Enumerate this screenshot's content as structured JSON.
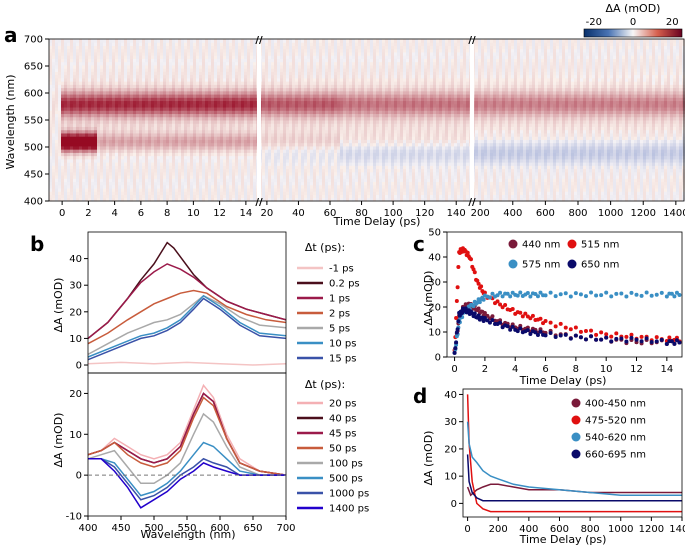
{
  "panel_labels": {
    "a": "a",
    "b": "b",
    "c": "c",
    "d": "d"
  },
  "chart_data": [
    {
      "id": "a",
      "type": "heatmap",
      "title": "",
      "xlabel": "Time Delay (ps)",
      "ylabel": "Wavelength (nm)",
      "ylim": [
        400,
        700
      ],
      "yticks": [
        "400",
        "450",
        "500",
        "550",
        "600",
        "650",
        "700"
      ],
      "xsegments": [
        {
          "range": [
            -1,
            15
          ],
          "ticks": [
            "0",
            "2",
            "4",
            "6",
            "8",
            "10",
            "12",
            "14"
          ]
        },
        {
          "range": [
            15,
            150
          ],
          "ticks": [
            "20",
            "40",
            "60",
            "80",
            "100",
            "120",
            "140"
          ]
        },
        {
          "range": [
            150,
            1450
          ],
          "ticks": [
            "200",
            "400",
            "600",
            "800",
            "1000",
            "1200",
            "1400"
          ]
        }
      ],
      "bands": [
        {
          "name": "positive",
          "center_nm": 580,
          "value": 20
        },
        {
          "name": "early",
          "center_nm": 510,
          "value": 30
        },
        {
          "name": "negative",
          "center_nm": 490,
          "value": -10
        }
      ],
      "colorbar": {
        "label": "ΔA (mOD)",
        "ticks": [
          "-20",
          "0",
          "20"
        ],
        "range": [
          -25,
          25
        ],
        "negative_color": "#08306b",
        "positive_color": "#67001f"
      }
    },
    {
      "id": "b-top",
      "type": "line",
      "ylabel": "ΔA (mOD)",
      "xlim": [
        400,
        700
      ],
      "ylim": [
        -3,
        50
      ],
      "yticks": [
        "0",
        "10",
        "20",
        "30",
        "40"
      ],
      "legend_title": "Δt (ps):",
      "series": [
        {
          "name": "-1 ps",
          "color": "#f4c4c4",
          "x": [
            400,
            450,
            500,
            550,
            600,
            650,
            700
          ],
          "y": [
            0.5,
            1,
            0.5,
            1,
            0.5,
            0,
            0.5
          ]
        },
        {
          "name": "0.2 ps",
          "color": "#4a0f1c",
          "x": [
            400,
            430,
            460,
            480,
            500,
            520,
            530,
            560,
            580,
            610,
            640,
            670,
            700
          ],
          "y": [
            10,
            16,
            25,
            32,
            38,
            46,
            44,
            34,
            29,
            24,
            21,
            19,
            17
          ]
        },
        {
          "name": "1 ps",
          "color": "#9b1a4a",
          "x": [
            400,
            430,
            460,
            480,
            500,
            520,
            540,
            560,
            580,
            610,
            640,
            670,
            700
          ],
          "y": [
            10,
            16,
            25,
            31,
            35,
            38,
            36,
            33,
            29,
            24,
            21,
            19,
            17
          ]
        },
        {
          "name": "2 ps",
          "color": "#c85c3c",
          "x": [
            400,
            430,
            460,
            480,
            500,
            520,
            540,
            560,
            580,
            610,
            640,
            670,
            700
          ],
          "y": [
            8,
            12,
            17,
            20,
            23,
            25,
            27,
            28,
            27,
            22,
            19,
            17,
            16
          ]
        },
        {
          "name": "5 ps",
          "color": "#a9a9a9",
          "x": [
            400,
            430,
            460,
            480,
            500,
            520,
            540,
            560,
            575,
            600,
            630,
            660,
            700
          ],
          "y": [
            4,
            8,
            12,
            14,
            16,
            17,
            19,
            23,
            26,
            23,
            18,
            15,
            14
          ]
        },
        {
          "name": "10 ps",
          "color": "#3a8fc4",
          "x": [
            400,
            430,
            460,
            480,
            500,
            520,
            540,
            560,
            575,
            600,
            630,
            660,
            700
          ],
          "y": [
            3,
            6,
            9,
            11,
            12,
            14,
            17,
            22,
            26,
            22,
            16,
            12,
            11
          ]
        },
        {
          "name": "15 ps",
          "color": "#3a52a8",
          "x": [
            400,
            430,
            460,
            480,
            500,
            520,
            540,
            560,
            575,
            600,
            630,
            660,
            700
          ],
          "y": [
            2,
            5,
            8,
            10,
            11,
            13,
            16,
            21,
            25,
            21,
            15,
            11,
            10
          ]
        }
      ]
    },
    {
      "id": "b-bottom",
      "type": "line",
      "xlabel": "Wavelength (nm)",
      "ylabel": "ΔA (mOD)",
      "xlim": [
        400,
        700
      ],
      "xticks": [
        "400",
        "450",
        "500",
        "550",
        "600",
        "650",
        "700"
      ],
      "ylim": [
        -10,
        25
      ],
      "yticks": [
        "-10",
        "0",
        "10",
        "20"
      ],
      "legend_title": "Δt (ps):",
      "series": [
        {
          "name": "20 ps",
          "color": "#f4b0b4",
          "x": [
            400,
            420,
            440,
            460,
            480,
            500,
            520,
            540,
            560,
            575,
            590,
            610,
            630,
            660,
            700
          ],
          "y": [
            5,
            6,
            9,
            7,
            5,
            4,
            5,
            8,
            16,
            22,
            19,
            10,
            4,
            1,
            0
          ]
        },
        {
          "name": "40 ps",
          "color": "#4a0f1c",
          "x": [
            400,
            420,
            440,
            460,
            480,
            500,
            520,
            540,
            560,
            575,
            590,
            610,
            630,
            660,
            700
          ],
          "y": [
            5,
            6,
            8,
            6,
            4,
            3,
            4,
            7,
            15,
            20,
            18,
            9,
            3,
            1,
            0
          ]
        },
        {
          "name": "45 ps",
          "color": "#9b1a4a",
          "x": [
            400,
            420,
            440,
            460,
            480,
            500,
            520,
            540,
            560,
            575,
            590,
            610,
            630,
            660,
            700
          ],
          "y": [
            5,
            6,
            8,
            6,
            4,
            3,
            4,
            7,
            15,
            20,
            18,
            9,
            3,
            1,
            0
          ]
        },
        {
          "name": "50 ps",
          "color": "#c85c3c",
          "x": [
            400,
            420,
            440,
            460,
            480,
            500,
            520,
            540,
            560,
            575,
            590,
            610,
            630,
            660,
            700
          ],
          "y": [
            5,
            6,
            8,
            5,
            3,
            2,
            3,
            6,
            14,
            19,
            17,
            9,
            3,
            1,
            0
          ]
        },
        {
          "name": "100 ps",
          "color": "#a9a9a9",
          "x": [
            400,
            420,
            440,
            460,
            480,
            500,
            520,
            540,
            560,
            575,
            590,
            610,
            630,
            660,
            700
          ],
          "y": [
            4,
            5,
            6,
            2,
            -2,
            -2,
            0,
            3,
            10,
            15,
            13,
            7,
            2,
            0,
            0
          ]
        },
        {
          "name": "500 ps",
          "color": "#3a8fc4",
          "x": [
            400,
            420,
            440,
            460,
            480,
            500,
            520,
            540,
            560,
            575,
            590,
            610,
            630,
            660,
            700
          ],
          "y": [
            4,
            4,
            3,
            -1,
            -5,
            -4,
            -2,
            1,
            5,
            8,
            7,
            4,
            1,
            0,
            0
          ]
        },
        {
          "name": "1000 ps",
          "color": "#3a52a8",
          "x": [
            400,
            420,
            440,
            460,
            480,
            500,
            520,
            540,
            560,
            575,
            590,
            610,
            630,
            660,
            700
          ],
          "y": [
            4,
            4,
            2,
            -2,
            -6,
            -5,
            -3,
            0,
            2,
            4,
            3,
            2,
            0,
            0,
            0
          ]
        },
        {
          "name": "1400 ps",
          "color": "#2200cc",
          "x": [
            400,
            420,
            440,
            460,
            480,
            500,
            520,
            540,
            560,
            575,
            590,
            610,
            630,
            660,
            700
          ],
          "y": [
            4,
            4,
            1,
            -3,
            -8,
            -6,
            -4,
            -1,
            1,
            3,
            2,
            1,
            0,
            0,
            0
          ]
        }
      ]
    },
    {
      "id": "c",
      "type": "scatter",
      "xlabel": "Time Delay (ps)",
      "ylabel": "ΔA (mOD)",
      "xlim": [
        -0.5,
        15
      ],
      "xticks": [
        "0",
        "2",
        "4",
        "6",
        "8",
        "10",
        "12",
        "14"
      ],
      "ylim": [
        0,
        50
      ],
      "yticks": [
        "0",
        "10",
        "20",
        "30",
        "40",
        "50"
      ],
      "series": [
        {
          "name": "440 nm",
          "color": "#7a1a3a",
          "x": [
            0,
            0.3,
            0.6,
            1,
            1.5,
            2,
            3,
            4,
            5,
            6,
            8,
            10,
            12,
            14,
            15
          ],
          "y": [
            1,
            16,
            20,
            21,
            19,
            17,
            14,
            12,
            11,
            10,
            8,
            7,
            6,
            6,
            6
          ]
        },
        {
          "name": "515 nm",
          "color": "#e01010",
          "x": [
            0,
            0.3,
            0.6,
            1,
            1.5,
            2,
            3,
            4,
            5,
            6,
            8,
            10,
            12,
            14,
            15
          ],
          "y": [
            2,
            42,
            43,
            40,
            30,
            25,
            21,
            18,
            16,
            14,
            11,
            9,
            8,
            7,
            7
          ]
        },
        {
          "name": "575 nm",
          "color": "#3a8fc4",
          "x": [
            0,
            0.3,
            0.6,
            1,
            1.5,
            2,
            3,
            4,
            5,
            6,
            8,
            10,
            12,
            14,
            15
          ],
          "y": [
            1,
            14,
            18,
            20,
            22,
            24,
            25,
            25,
            25,
            25,
            25,
            25,
            25,
            25,
            25
          ]
        },
        {
          "name": "650 nm",
          "color": "#0a0a6a",
          "x": [
            0,
            0.3,
            0.6,
            1,
            1.5,
            2,
            3,
            4,
            5,
            6,
            8,
            10,
            12,
            14,
            15
          ],
          "y": [
            1,
            17,
            19,
            18,
            16,
            15,
            13,
            11,
            10,
            9,
            8,
            7,
            7,
            6,
            6
          ]
        }
      ]
    },
    {
      "id": "d",
      "type": "line",
      "xlabel": "Time Delay (ps)",
      "ylabel": "ΔA (mOD)",
      "xlim": [
        -30,
        1400
      ],
      "xticks": [
        "0",
        "200",
        "400",
        "600",
        "800",
        "1000",
        "1200",
        "1400"
      ],
      "ylim": [
        -5,
        42
      ],
      "yticks": [
        "0",
        "10",
        "20",
        "30",
        "40"
      ],
      "series": [
        {
          "name": "400-450 nm",
          "color": "#7a1a3a",
          "x": [
            0,
            20,
            60,
            100,
            150,
            200,
            300,
            400,
            600,
            800,
            1000,
            1200,
            1400
          ],
          "y": [
            6,
            3,
            5,
            6,
            7,
            7,
            6,
            5,
            5,
            4,
            4,
            4,
            4
          ]
        },
        {
          "name": "475-520 nm",
          "color": "#e01010",
          "x": [
            0,
            10,
            30,
            60,
            100,
            150,
            200,
            300,
            400,
            600,
            800,
            1000,
            1200,
            1400
          ],
          "y": [
            40,
            22,
            8,
            0,
            -2,
            -3,
            -3,
            -3,
            -3,
            -3,
            -3,
            -3,
            -3,
            -3
          ]
        },
        {
          "name": "540-620 nm",
          "color": "#3a8fc4",
          "x": [
            0,
            10,
            30,
            60,
            100,
            150,
            200,
            300,
            400,
            600,
            800,
            1000,
            1200,
            1400
          ],
          "y": [
            30,
            22,
            17,
            15,
            12,
            10,
            9,
            7,
            6,
            5,
            4,
            3,
            3,
            3
          ]
        },
        {
          "name": "660-695 nm",
          "color": "#0a0a6a",
          "x": [
            0,
            10,
            30,
            60,
            100,
            150,
            200,
            300,
            400,
            600,
            800,
            1000,
            1200,
            1400
          ],
          "y": [
            18,
            8,
            4,
            2,
            1,
            1,
            1,
            1,
            1,
            1,
            1,
            1,
            1,
            1
          ]
        }
      ]
    }
  ]
}
